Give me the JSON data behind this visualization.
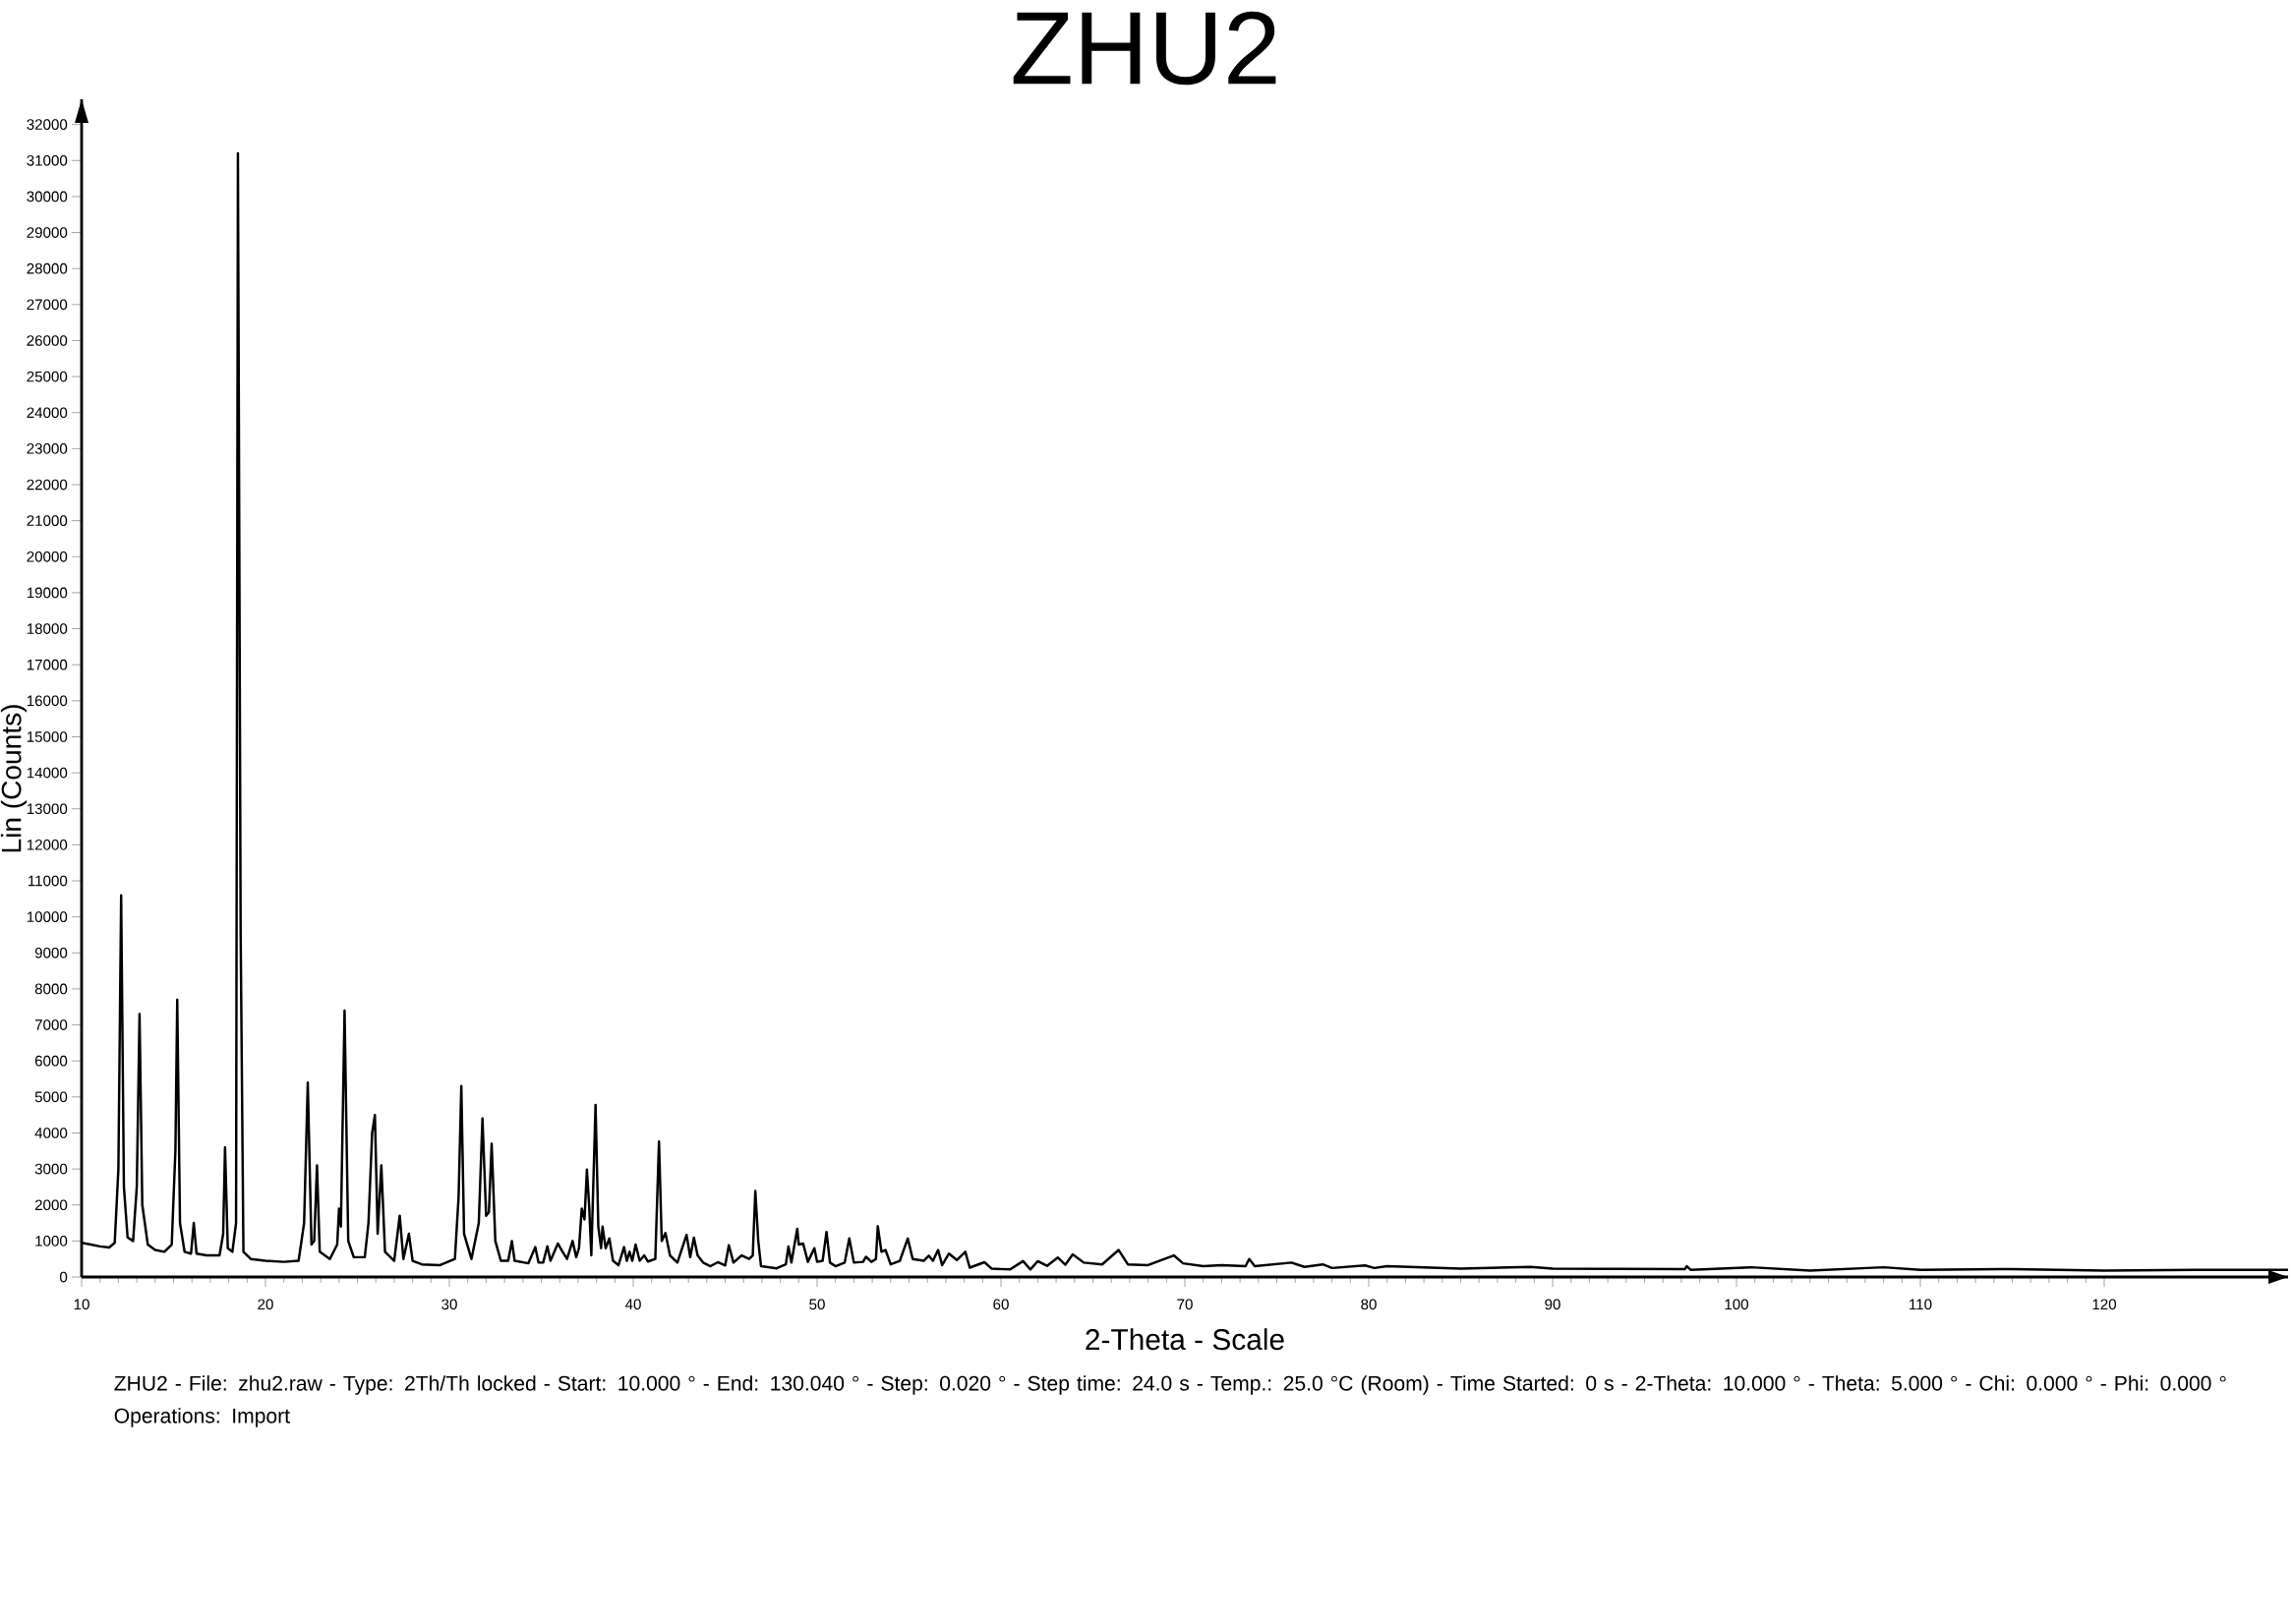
{
  "chart_data": {
    "type": "line",
    "title": "ZHU2",
    "xlabel": "2-Theta - Scale",
    "ylabel": "Lin (Counts)",
    "annotations": [
      "ZHU2 - File: zhu2.raw - Type: 2Th/Th locked - Start: 10.000 ° - End: 130.040 ° - Step: 0.020 ° - Step time: 24.0 s - Temp.: 25.0 °C (Room) - Time Started: 0 s - 2-Theta: 10.000 ° - Theta: 5.000 ° - Chi: 0.000 ° - Phi: 0.000 °",
      "Operations: Import"
    ],
    "xlim": [
      10,
      130
    ],
    "ylim": [
      0,
      32700
    ],
    "xticks": [
      10,
      20,
      30,
      40,
      50,
      60,
      70,
      80,
      90,
      100,
      110,
      120
    ],
    "yticks": [
      0,
      1000,
      2000,
      3000,
      4000,
      5000,
      6000,
      7000,
      8000,
      9000,
      10000,
      11000,
      12000,
      13000,
      14000,
      15000,
      16000,
      17000,
      18000,
      19000,
      20000,
      21000,
      22000,
      23000,
      24000,
      25000,
      26000,
      27000,
      28000,
      29000,
      30000,
      31000,
      32000
    ],
    "color": "#000000",
    "x": [
      10,
      10.5,
      11,
      11.5,
      11.8,
      12.0,
      12.15,
      12.3,
      12.5,
      12.8,
      13.0,
      13.15,
      13.3,
      13.6,
      14.0,
      14.5,
      14.9,
      15.1,
      15.2,
      15.35,
      15.6,
      15.95,
      16.1,
      16.25,
      16.8,
      17.5,
      17.7,
      17.8,
      17.95,
      18.2,
      18.4,
      18.5,
      18.55,
      18.65,
      18.8,
      19.2,
      20,
      21,
      21.8,
      22.1,
      22.3,
      22.5,
      22.65,
      22.8,
      22.95,
      23.5,
      23.9,
      24.0,
      24.1,
      24.3,
      24.5,
      24.8,
      25.4,
      25.6,
      25.8,
      25.95,
      26.1,
      26.3,
      26.5,
      27.0,
      27.3,
      27.5,
      27.8,
      28.0,
      28.5,
      29.5,
      30.3,
      30.5,
      30.65,
      30.8,
      31.2,
      31.6,
      31.8,
      32.0,
      32.15,
      32.3,
      32.5,
      32.8,
      33.2,
      33.4,
      33.55,
      34.3,
      34.67,
      34.85,
      35.1,
      35.33,
      35.5,
      35.9,
      36.1,
      36.4,
      36.7,
      36.9,
      37.05,
      37.2,
      37.35,
      37.48,
      37.6,
      37.72,
      37.95,
      38.1,
      38.25,
      38.33,
      38.5,
      38.7,
      38.9,
      39.2,
      39.5,
      39.65,
      39.8,
      39.95,
      40.13,
      40.35,
      40.6,
      40.8,
      41.2,
      41.4,
      41.55,
      41.75,
      42.0,
      42.4,
      42.9,
      43.1,
      43.3,
      43.5,
      43.8,
      44.2,
      44.6,
      45.0,
      45.2,
      45.45,
      45.9,
      46.3,
      46.5,
      46.64,
      46.8,
      46.95,
      47.8,
      48.3,
      48.44,
      48.6,
      48.92,
      49.0,
      49.24,
      49.5,
      49.85,
      50.0,
      50.3,
      50.51,
      50.7,
      51.0,
      51.5,
      51.75,
      52.0,
      52.5,
      52.66,
      52.95,
      53.2,
      53.3,
      53.5,
      53.72,
      54.0,
      54.5,
      54.93,
      55.2,
      55.8,
      56.07,
      56.3,
      56.58,
      56.8,
      57.17,
      57.6,
      58.06,
      58.3,
      59.1,
      59.5,
      60.5,
      61.2,
      61.6,
      62.0,
      62.5,
      63.09,
      63.5,
      63.9,
      64.5,
      65.5,
      66.4,
      66.9,
      68,
      69.4,
      69.9,
      71,
      72,
      73.3,
      73.5,
      73.8,
      75.8,
      76.5,
      77.5,
      78,
      79.8,
      80.3,
      81,
      85,
      88.8,
      90,
      97.2,
      97.3,
      97.5,
      100.8,
      104,
      108,
      110,
      115,
      120,
      125,
      130
    ],
    "values": [
      950,
      900,
      850,
      820,
      950,
      3000,
      10600,
      2500,
      1100,
      1000,
      2500,
      7300,
      2000,
      900,
      750,
      700,
      900,
      3500,
      7700,
      1500,
      700,
      650,
      1500,
      650,
      600,
      600,
      1200,
      3600,
      800,
      700,
      1500,
      31200,
      24200,
      9500,
      700,
      500,
      450,
      420,
      450,
      1500,
      5400,
      900,
      1000,
      3100,
      700,
      500,
      900,
      1900,
      1400,
      7400,
      1000,
      550,
      550,
      1500,
      4000,
      4500,
      1200,
      3100,
      700,
      450,
      1700,
      500,
      1200,
      450,
      350,
      330,
      500,
      2200,
      5300,
      1200,
      500,
      1500,
      4400,
      1700,
      1800,
      3700,
      1000,
      450,
      450,
      1000,
      450,
      380,
      830,
      400,
      400,
      850,
      450,
      930,
      750,
      500,
      1000,
      550,
      800,
      1900,
      1600,
      2980,
      2000,
      600,
      4780,
      1400,
      800,
      1400,
      800,
      1070,
      450,
      330,
      830,
      450,
      700,
      450,
      900,
      450,
      600,
      430,
      500,
      3760,
      1000,
      1220,
      600,
      400,
      1170,
      550,
      1090,
      600,
      400,
      300,
      410,
      320,
      880,
      400,
      600,
      500,
      600,
      2390,
      1000,
      300,
      240,
      350,
      850,
      400,
      1340,
      900,
      930,
      420,
      800,
      420,
      450,
      1250,
      400,
      300,
      400,
      1070,
      400,
      420,
      560,
      420,
      500,
      1410,
      700,
      750,
      350,
      450,
      1070,
      500,
      450,
      590,
      450,
      750,
      330,
      650,
      470,
      700,
      260,
      410,
      230,
      210,
      440,
      210,
      440,
      310,
      540,
      340,
      630,
      400,
      350,
      750,
      350,
      330,
      600,
      380,
      300,
      330,
      300,
      500,
      300,
      400,
      280,
      350,
      250,
      320,
      250,
      300,
      230,
      280,
      230,
      220,
      300,
      200,
      270,
      180,
      270,
      200,
      220,
      180,
      200,
      200
    ]
  }
}
